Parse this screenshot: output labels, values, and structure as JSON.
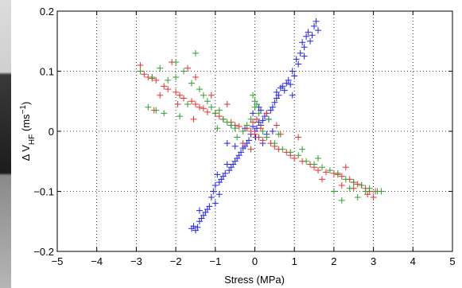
{
  "chart_data": {
    "type": "scatter",
    "xlabel": "Stress (MPa)",
    "ylabel": {
      "main": "Δ V",
      "subscript": "HF",
      "unit_open": " (ms",
      "superscript": "−1",
      "unit_close": ")"
    },
    "xlim": [
      -5,
      5
    ],
    "ylim": [
      -0.2,
      0.2
    ],
    "xticks": [
      -5,
      -4,
      -3,
      -2,
      -1,
      0,
      1,
      2,
      3,
      4,
      5
    ],
    "yticks": [
      -0.2,
      -0.1,
      0,
      0.1,
      0.2
    ],
    "xtick_labels": [
      "−5",
      "−4",
      "−3",
      "−2",
      "−1",
      "0",
      "1",
      "2",
      "3",
      "4",
      "5"
    ],
    "ytick_labels": [
      "−0.2",
      "−0.1",
      "0",
      "0.1",
      "0.2"
    ],
    "grid": true,
    "marker": "+",
    "series": [
      {
        "color": "#2222ee",
        "points": [
          [
            1.55,
            0.183
          ],
          [
            1.5,
            0.175
          ],
          [
            1.45,
            0.16
          ],
          [
            1.6,
            0.168
          ],
          [
            1.3,
            0.158
          ],
          [
            1.35,
            0.165
          ],
          [
            1.2,
            0.148
          ],
          [
            1.4,
            0.15
          ],
          [
            1.15,
            0.13
          ],
          [
            1.25,
            0.14
          ],
          [
            1.05,
            0.12
          ],
          [
            1.1,
            0.112
          ],
          [
            0.95,
            0.1
          ],
          [
            1.0,
            0.092
          ],
          [
            0.85,
            0.085
          ],
          [
            0.9,
            0.078
          ],
          [
            0.7,
            0.075
          ],
          [
            0.75,
            0.068
          ],
          [
            0.6,
            0.06
          ],
          [
            0.65,
            0.072
          ],
          [
            0.55,
            0.055
          ],
          [
            0.5,
            0.048
          ],
          [
            0.45,
            0.04
          ],
          [
            0.4,
            0.035
          ],
          [
            0.3,
            0.03
          ],
          [
            0.25,
            0.025
          ],
          [
            0.35,
            0.02
          ],
          [
            0.2,
            0.018
          ],
          [
            0.15,
            0.01
          ],
          [
            0.1,
            0.015
          ],
          [
            0.05,
            0.005
          ],
          [
            0.0,
            0.0
          ],
          [
            -0.05,
            0.008
          ],
          [
            0.02,
            -0.01
          ],
          [
            -0.1,
            -0.005
          ],
          [
            -0.15,
            -0.015
          ],
          [
            -0.2,
            -0.02
          ],
          [
            -0.25,
            -0.025
          ],
          [
            -0.3,
            -0.028
          ],
          [
            -0.35,
            -0.035
          ],
          [
            -0.4,
            -0.04
          ],
          [
            -0.45,
            -0.045
          ],
          [
            -0.5,
            -0.05
          ],
          [
            -0.55,
            -0.055
          ],
          [
            -0.6,
            -0.06
          ],
          [
            -0.65,
            -0.065
          ],
          [
            -0.7,
            -0.055
          ],
          [
            -0.75,
            -0.07
          ],
          [
            -0.8,
            -0.075
          ],
          [
            -0.85,
            -0.08
          ],
          [
            -0.9,
            -0.085
          ],
          [
            -0.95,
            -0.072
          ],
          [
            -1.0,
            -0.09
          ],
          [
            -1.05,
            -0.1
          ],
          [
            -0.9,
            -0.105
          ],
          [
            -1.0,
            -0.12
          ],
          [
            -1.1,
            -0.11
          ],
          [
            -1.15,
            -0.125
          ],
          [
            -1.2,
            -0.13
          ],
          [
            -1.25,
            -0.135
          ],
          [
            -1.3,
            -0.14
          ],
          [
            -1.35,
            -0.145
          ],
          [
            -1.4,
            -0.15
          ],
          [
            -1.45,
            -0.16
          ],
          [
            -1.5,
            -0.165
          ],
          [
            -1.55,
            -0.158
          ],
          [
            -1.6,
            -0.162
          ],
          [
            -1.4,
            -0.132
          ],
          [
            -0.7,
            -0.02
          ],
          [
            -0.5,
            -0.025
          ],
          [
            -0.6,
            0.01
          ],
          [
            0.1,
            0.04
          ],
          [
            0.15,
            0.035
          ],
          [
            0.05,
            0.045
          ],
          [
            -0.05,
            0.03
          ],
          [
            0.2,
            -0.02
          ],
          [
            0.3,
            -0.005
          ],
          [
            0.55,
            0.065
          ],
          [
            0.8,
            0.08
          ],
          [
            0.95,
            0.06
          ],
          [
            1.25,
            0.125
          ],
          [
            0.45,
            0.0
          ],
          [
            -0.25,
            0.005
          ]
        ]
      },
      {
        "color": "#e83030",
        "points": [
          [
            -2.9,
            0.11
          ],
          [
            -2.8,
            0.095
          ],
          [
            -2.7,
            0.09
          ],
          [
            -2.6,
            0.088
          ],
          [
            -2.5,
            0.085
          ],
          [
            -2.3,
            0.075
          ],
          [
            -2.2,
            0.07
          ],
          [
            -2.0,
            0.065
          ],
          [
            -1.9,
            0.06
          ],
          [
            -1.8,
            0.055
          ],
          [
            -1.6,
            0.05
          ],
          [
            -1.5,
            0.045
          ],
          [
            -1.4,
            0.04
          ],
          [
            -1.3,
            0.038
          ],
          [
            -1.2,
            0.032
          ],
          [
            -1.0,
            0.03
          ],
          [
            -0.9,
            0.025
          ],
          [
            -0.8,
            0.02
          ],
          [
            -0.6,
            0.015
          ],
          [
            -0.5,
            0.01
          ],
          [
            -0.4,
            0.008
          ],
          [
            -0.2,
            0.005
          ],
          [
            -0.1,
            0.0
          ],
          [
            0.0,
            -0.005
          ],
          [
            0.1,
            -0.01
          ],
          [
            0.2,
            -0.015
          ],
          [
            0.4,
            -0.02
          ],
          [
            0.5,
            -0.025
          ],
          [
            0.6,
            -0.03
          ],
          [
            0.8,
            -0.035
          ],
          [
            0.9,
            -0.04
          ],
          [
            1.0,
            -0.045
          ],
          [
            1.2,
            -0.05
          ],
          [
            1.4,
            -0.055
          ],
          [
            1.5,
            -0.06
          ],
          [
            1.6,
            -0.065
          ],
          [
            1.8,
            -0.068
          ],
          [
            2.0,
            -0.07
          ],
          [
            2.1,
            -0.072
          ],
          [
            2.2,
            -0.075
          ],
          [
            2.4,
            -0.08
          ],
          [
            2.5,
            -0.085
          ],
          [
            2.6,
            -0.088
          ],
          [
            2.7,
            -0.09
          ],
          [
            2.8,
            -0.095
          ],
          [
            2.9,
            -0.1
          ],
          [
            3.0,
            -0.11
          ],
          [
            2.85,
            -0.105
          ],
          [
            3.05,
            -0.1
          ],
          [
            2.5,
            -0.095
          ],
          [
            2.2,
            -0.09
          ],
          [
            -2.1,
            0.115
          ],
          [
            -1.7,
            0.105
          ],
          [
            -1.5,
            0.09
          ],
          [
            -2.4,
            0.06
          ],
          [
            -1.95,
            0.045
          ],
          [
            -1.55,
            0.02
          ],
          [
            -0.7,
            0.045
          ],
          [
            0.3,
            0.03
          ],
          [
            0.55,
            0.01
          ],
          [
            0.65,
            -0.005
          ],
          [
            1.1,
            -0.01
          ],
          [
            -0.3,
            -0.02
          ],
          [
            -0.1,
            -0.03
          ],
          [
            0.05,
            0.02
          ],
          [
            -0.05,
            0.015
          ],
          [
            0.15,
            0.005
          ],
          [
            1.7,
            -0.08
          ],
          [
            2.3,
            -0.06
          ],
          [
            -1.1,
            0.06
          ],
          [
            -2.55,
            0.035
          ]
        ]
      },
      {
        "color": "#2ca02c",
        "points": [
          [
            -2.9,
            0.1
          ],
          [
            -2.6,
            0.09
          ],
          [
            -2.4,
            0.105
          ],
          [
            -2.2,
            0.085
          ],
          [
            -2.0,
            0.09
          ],
          [
            -1.8,
            0.1
          ],
          [
            -1.6,
            0.08
          ],
          [
            -1.5,
            0.13
          ],
          [
            -1.4,
            0.07
          ],
          [
            -1.2,
            0.05
          ],
          [
            -1.1,
            0.04
          ],
          [
            -1.0,
            0.03
          ],
          [
            -0.9,
            0.035
          ],
          [
            -0.8,
            0.02
          ],
          [
            -0.7,
            0.015
          ],
          [
            -0.6,
            0.01
          ],
          [
            -0.5,
            0.005
          ],
          [
            -0.3,
            0.0
          ],
          [
            -0.2,
            0.01
          ],
          [
            -0.1,
            0.02
          ],
          [
            0.0,
            0.05
          ],
          [
            0.05,
            0.045
          ],
          [
            0.1,
            0.03
          ],
          [
            0.2,
            0.0
          ],
          [
            0.3,
            -0.01
          ],
          [
            0.5,
            -0.02
          ],
          [
            0.7,
            -0.03
          ],
          [
            0.9,
            -0.035
          ],
          [
            1.1,
            -0.04
          ],
          [
            1.3,
            -0.05
          ],
          [
            1.5,
            -0.055
          ],
          [
            1.7,
            -0.06
          ],
          [
            1.9,
            -0.065
          ],
          [
            2.1,
            -0.07
          ],
          [
            2.3,
            -0.08
          ],
          [
            2.5,
            -0.085
          ],
          [
            2.7,
            -0.09
          ],
          [
            2.9,
            -0.095
          ],
          [
            3.1,
            -0.1
          ],
          [
            3.2,
            -0.1
          ],
          [
            2.6,
            -0.11
          ],
          [
            2.4,
            -0.095
          ],
          [
            2.8,
            -0.1
          ],
          [
            -2.7,
            0.04
          ],
          [
            -2.5,
            0.035
          ],
          [
            -2.3,
            0.03
          ],
          [
            -1.9,
            0.025
          ],
          [
            -1.7,
            0.045
          ],
          [
            -1.3,
            0.06
          ],
          [
            -0.95,
            0.005
          ],
          [
            -0.45,
            -0.01
          ],
          [
            0.35,
            0.02
          ],
          [
            0.6,
            -0.005
          ],
          [
            1.2,
            -0.03
          ],
          [
            1.6,
            -0.045
          ],
          [
            2.0,
            -0.1
          ],
          [
            2.2,
            -0.115
          ],
          [
            -0.05,
            0.06
          ],
          [
            0.0,
            0.04
          ],
          [
            -2.0,
            0.115
          ]
        ]
      }
    ]
  }
}
